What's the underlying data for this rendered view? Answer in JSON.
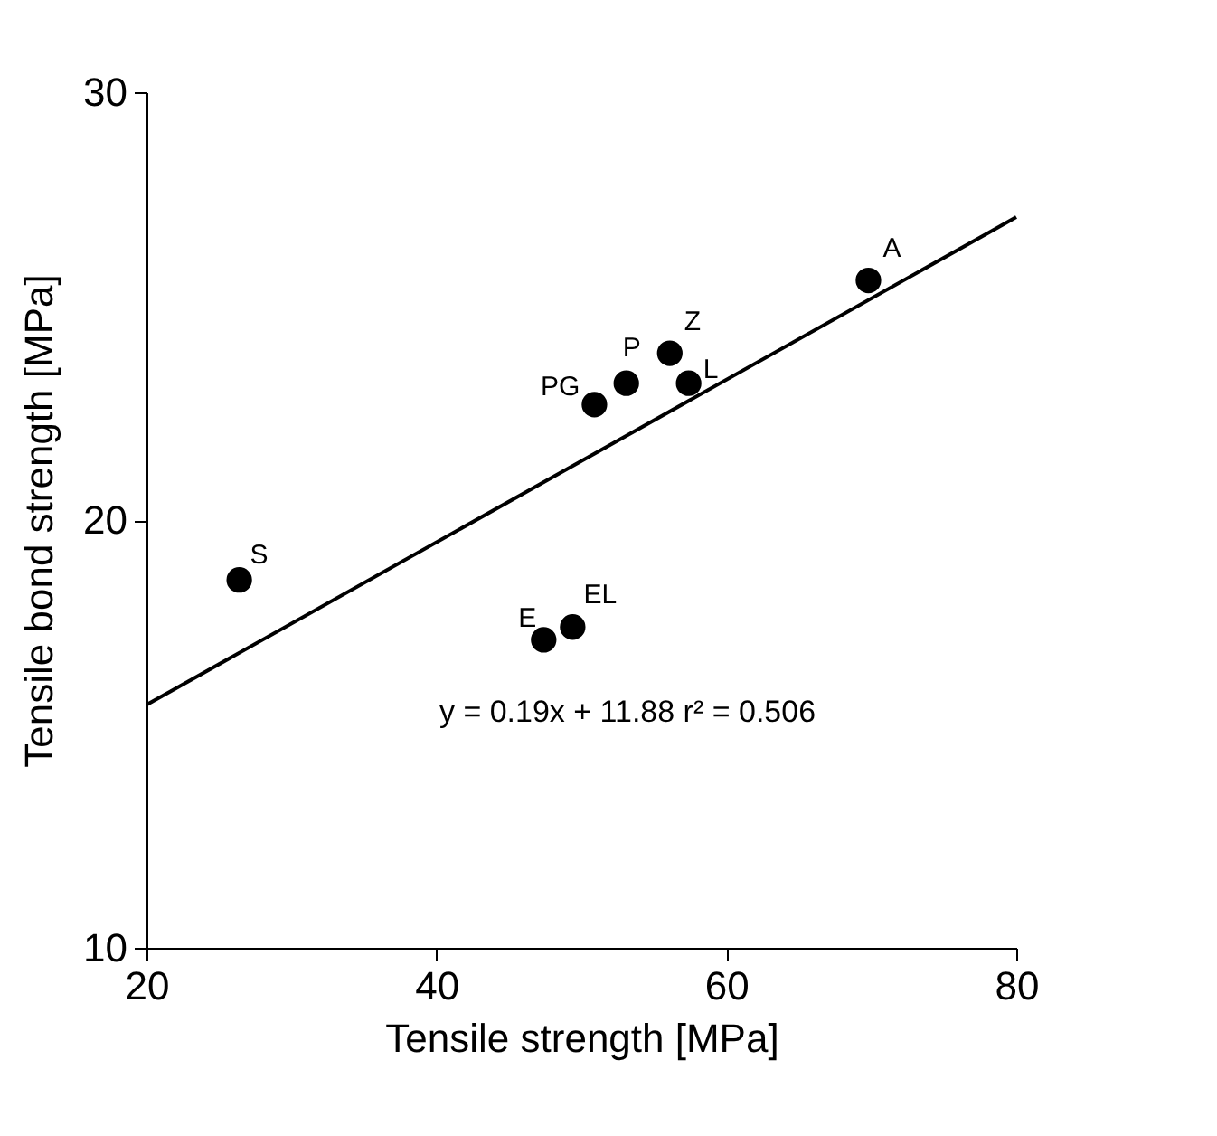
{
  "chart_data": {
    "type": "scatter",
    "xlabel": "Tensile strength [MPa]",
    "ylabel": "Tensile bond strength [MPa]",
    "x": [
      26.4,
      47.4,
      49.4,
      50.9,
      53.1,
      56.1,
      57.4,
      69.8
    ],
    "series": [
      {
        "color": "#000000",
        "marker": "circle",
        "values": [
          18.6,
          17.2,
          17.5,
          22.7,
          23.2,
          23.9,
          23.2,
          25.6
        ]
      },
      {
        "type": "line",
        "color": "#000000",
        "line_style": "solid",
        "x": [
          20,
          80
        ],
        "values": [
          15.68,
          27.08
        ]
      }
    ],
    "annotations": [
      {
        "text": "S",
        "x": 26.4,
        "y": 18.6
      },
      {
        "text": "E",
        "x": 47.4,
        "y": 17.2
      },
      {
        "text": "EL",
        "x": 49.4,
        "y": 17.5
      },
      {
        "text": "PG",
        "x": 50.9,
        "y": 22.7
      },
      {
        "text": "P",
        "x": 53.1,
        "y": 23.2
      },
      {
        "text": "Z",
        "x": 56.1,
        "y": 23.9
      },
      {
        "text": "L",
        "x": 57.4,
        "y": 23.2
      },
      {
        "text": "A",
        "x": 69.8,
        "y": 25.6
      },
      "y = 0.19x + 11.88   r² = 0.506"
    ],
    "xlim": [
      20,
      80
    ],
    "xticks": [
      20,
      40,
      60,
      80
    ],
    "ylim": [
      10,
      30
    ],
    "yticks": [
      10,
      20,
      30
    ],
    "grid": false
  }
}
